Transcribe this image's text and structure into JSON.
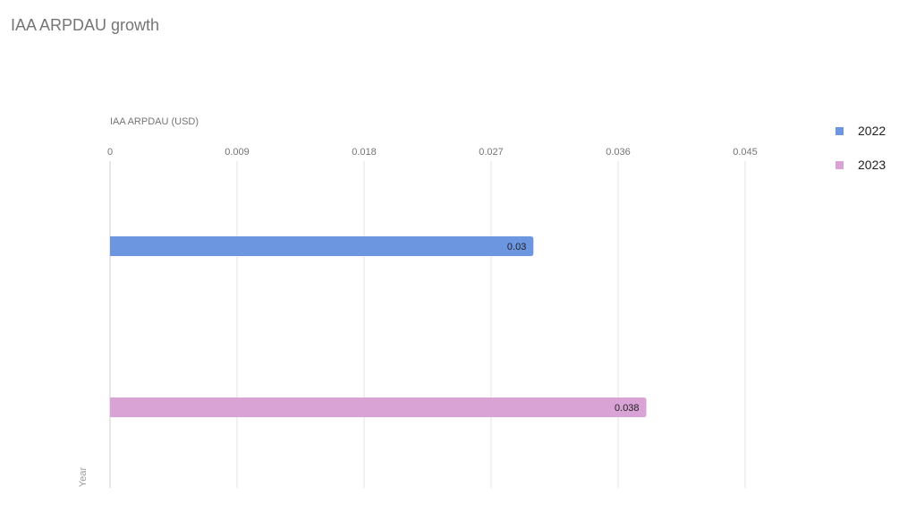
{
  "chart_data": {
    "type": "bar",
    "orientation": "horizontal",
    "title": "IAA ARPDAU growth",
    "xlabel": "IAA ARPDAU (USD)",
    "ylabel": "Year",
    "xlim": [
      0,
      0.045
    ],
    "x_ticks": [
      "0",
      "0.009",
      "0.018",
      "0.027",
      "0.036",
      "0.045"
    ],
    "x_tick_values": [
      0,
      0.009,
      0.018,
      0.027,
      0.036,
      0.045
    ],
    "grid": true,
    "legend_position": "right",
    "series": [
      {
        "name": "2022",
        "value": 0.03,
        "label": "0.03",
        "color": "#6d96e0"
      },
      {
        "name": "2023",
        "value": 0.038,
        "label": "0.038",
        "color": "#d9a3d6"
      }
    ]
  }
}
